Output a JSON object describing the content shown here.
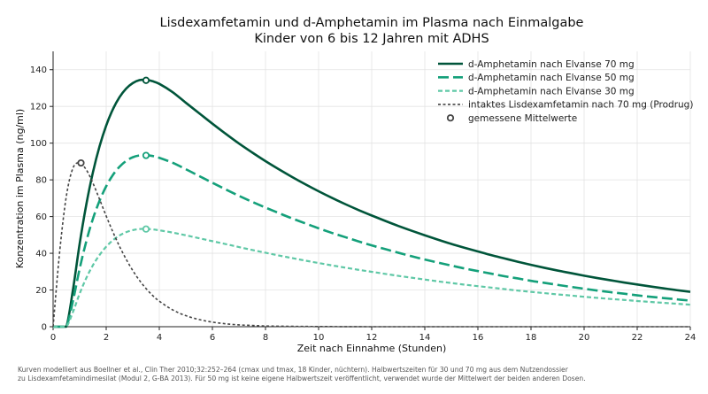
{
  "chart_data": {
    "type": "line",
    "title_line1": "Lisdexamfetamin und d-Amphetamin im Plasma nach Einmalgabe",
    "title_line2": "Kinder von 6 bis 12 Jahren mit ADHS",
    "xlabel": "Zeit nach Einnahme (Stunden)",
    "ylabel": "Konzentration im Plasma (ng/ml)",
    "xlim": [
      0,
      24
    ],
    "ylim": [
      0,
      150
    ],
    "xticks": [
      0,
      2,
      4,
      6,
      8,
      10,
      12,
      14,
      16,
      18,
      20,
      22,
      24
    ],
    "yticks": [
      0,
      20,
      40,
      60,
      80,
      100,
      120,
      140
    ],
    "grid": true,
    "legend_position": "top-right",
    "series": [
      {
        "name": "d-Amphetamin nach Elvanse 70 mg",
        "color": "#00553a",
        "style": "solid",
        "x": [
          0,
          0.25,
          0.5,
          0.75,
          1,
          1.25,
          1.5,
          1.75,
          2,
          2.25,
          2.5,
          2.75,
          3,
          3.25,
          3.5,
          3.75,
          4,
          4.5,
          5,
          5.5,
          6,
          6.5,
          7,
          7.5,
          8,
          8.5,
          9,
          9.5,
          10,
          10.5,
          11,
          11.5,
          12,
          12.5,
          13,
          13.5,
          14,
          14.5,
          15,
          15.5,
          16,
          16.5,
          17,
          17.5,
          18,
          18.5,
          19,
          19.5,
          20,
          20.5,
          21,
          21.5,
          22,
          22.5,
          23,
          23.5,
          24
        ],
        "values": [
          0,
          0,
          0,
          20.3,
          45.2,
          66.5,
          84.1,
          98.3,
          109.6,
          118.4,
          125.0,
          129.7,
          132.7,
          134.3,
          134.5,
          133.7,
          132.3,
          127.8,
          122.0,
          116.3,
          110.6,
          105.1,
          99.8,
          94.9,
          90.2,
          85.8,
          81.6,
          77.6,
          73.8,
          70.2,
          66.8,
          63.6,
          60.6,
          57.7,
          54.9,
          52.3,
          49.8,
          47.4,
          45.1,
          43.0,
          41.0,
          39.0,
          37.2,
          35.4,
          33.7,
          32.1,
          30.6,
          29.2,
          27.8,
          26.5,
          25.3,
          24.1,
          23.0,
          21.9,
          20.9,
          19.9,
          19.0
        ]
      },
      {
        "name": "d-Amphetamin nach Elvanse 50 mg",
        "color": "#14a07a",
        "style": "dashed",
        "x": [
          0,
          0.25,
          0.5,
          0.75,
          1,
          1.25,
          1.5,
          1.75,
          2,
          2.25,
          2.5,
          2.75,
          3,
          3.25,
          3.5,
          3.75,
          4,
          4.5,
          5,
          5.5,
          6,
          6.5,
          7,
          7.5,
          8,
          8.5,
          9,
          9.5,
          10,
          10.5,
          11,
          11.5,
          12,
          12.5,
          13,
          13.5,
          14,
          14.5,
          15,
          15.5,
          16,
          16.5,
          17,
          17.5,
          18,
          18.5,
          19,
          19.5,
          20,
          20.5,
          21,
          21.5,
          22,
          22.5,
          23,
          23.5,
          24
        ],
        "values": [
          0,
          0,
          0,
          14.2,
          31.6,
          46.5,
          58.8,
          68.6,
          76.5,
          82.6,
          87.1,
          90.3,
          92.3,
          93.3,
          93.5,
          93.0,
          92.0,
          89.3,
          85.8,
          82.1,
          78.4,
          74.8,
          71.3,
          68.0,
          64.9,
          61.9,
          59.0,
          56.3,
          53.6,
          51.1,
          48.8,
          46.5,
          44.3,
          42.3,
          40.3,
          38.4,
          36.6,
          34.9,
          33.3,
          31.7,
          30.3,
          28.9,
          27.5,
          26.3,
          25.0,
          23.9,
          22.8,
          21.7,
          20.7,
          19.7,
          18.8,
          18.0,
          17.1,
          16.3,
          15.6,
          14.9,
          14.2
        ]
      },
      {
        "name": "d-Amphetamin nach Elvanse 30 mg",
        "color": "#5fc8a6",
        "style": "dotted",
        "x": [
          0,
          0.25,
          0.5,
          0.75,
          1,
          1.25,
          1.5,
          1.75,
          2,
          2.25,
          2.5,
          2.75,
          3,
          3.25,
          3.5,
          3.75,
          4,
          4.5,
          5,
          5.5,
          6,
          6.5,
          7,
          7.5,
          8,
          8.5,
          9,
          9.5,
          10,
          10.5,
          11,
          11.5,
          12,
          12.5,
          13,
          13.5,
          14,
          14.5,
          15,
          15.5,
          16,
          16.5,
          17,
          17.5,
          18,
          18.5,
          19,
          19.5,
          20,
          20.5,
          21,
          21.5,
          22,
          22.5,
          23,
          23.5,
          24
        ],
        "values": [
          0,
          0,
          0,
          8.1,
          18.0,
          26.5,
          33.5,
          39.1,
          43.6,
          47.1,
          49.7,
          51.5,
          52.6,
          53.2,
          53.3,
          53.0,
          52.5,
          51.3,
          49.8,
          48.2,
          46.6,
          45.0,
          43.4,
          41.8,
          40.3,
          38.8,
          37.4,
          36.0,
          34.7,
          33.4,
          32.2,
          31.0,
          29.9,
          28.8,
          27.7,
          26.7,
          25.7,
          24.7,
          23.8,
          22.9,
          22.1,
          21.3,
          20.5,
          19.7,
          19.0,
          18.3,
          17.6,
          17.0,
          16.3,
          15.7,
          15.1,
          14.6,
          14.0,
          13.5,
          13.0,
          12.5,
          12.0
        ]
      },
      {
        "name": "intaktes Lisdexamfetamin nach 70 mg (Prodrug)",
        "color": "#444444",
        "style": "dotted-dark",
        "x": [
          0,
          0.25,
          0.5,
          0.75,
          1,
          1.25,
          1.5,
          1.75,
          2,
          2.25,
          2.5,
          2.75,
          3,
          3.25,
          3.5,
          3.75,
          4,
          4.5,
          5,
          5.5,
          6,
          6.5,
          7,
          7.5,
          8,
          9,
          10,
          12,
          14,
          16,
          18,
          20,
          22,
          24
        ],
        "values": [
          0,
          41.2,
          71.2,
          86.5,
          89.2,
          85.5,
          78.2,
          69.4,
          60.3,
          51.7,
          43.8,
          36.8,
          30.6,
          25.3,
          20.8,
          17.0,
          13.9,
          9.2,
          6.0,
          3.9,
          2.5,
          1.6,
          1.0,
          0.7,
          0.4,
          0.2,
          0.1,
          0,
          0,
          0,
          0,
          0,
          0,
          0
        ]
      }
    ],
    "markers": {
      "name": "gemessene Mittelwerte",
      "points": [
        {
          "x": 3.5,
          "y": 134.2,
          "color": "#00553a"
        },
        {
          "x": 3.5,
          "y": 93.3,
          "color": "#14a07a"
        },
        {
          "x": 3.5,
          "y": 53.2,
          "color": "#5fc8a6"
        },
        {
          "x": 1.05,
          "y": 89.2,
          "color": "#444444"
        }
      ]
    },
    "footnote_line1": "Kurven modelliert aus Boellner et al., Clin Ther 2010;32:252–264 (cmax und tmax, 18 Kinder, nüchtern). Halbwertszeiten für 30 und 70 mg aus dem Nutzendossier",
    "footnote_line2": "zu Lisdexamfetamindimesilat (Modul 2, G-BA 2013). Für 50 mg ist keine eigene Halbwertszeit veröffentlicht, verwendet wurde der Mittelwert der beiden anderen Dosen."
  }
}
